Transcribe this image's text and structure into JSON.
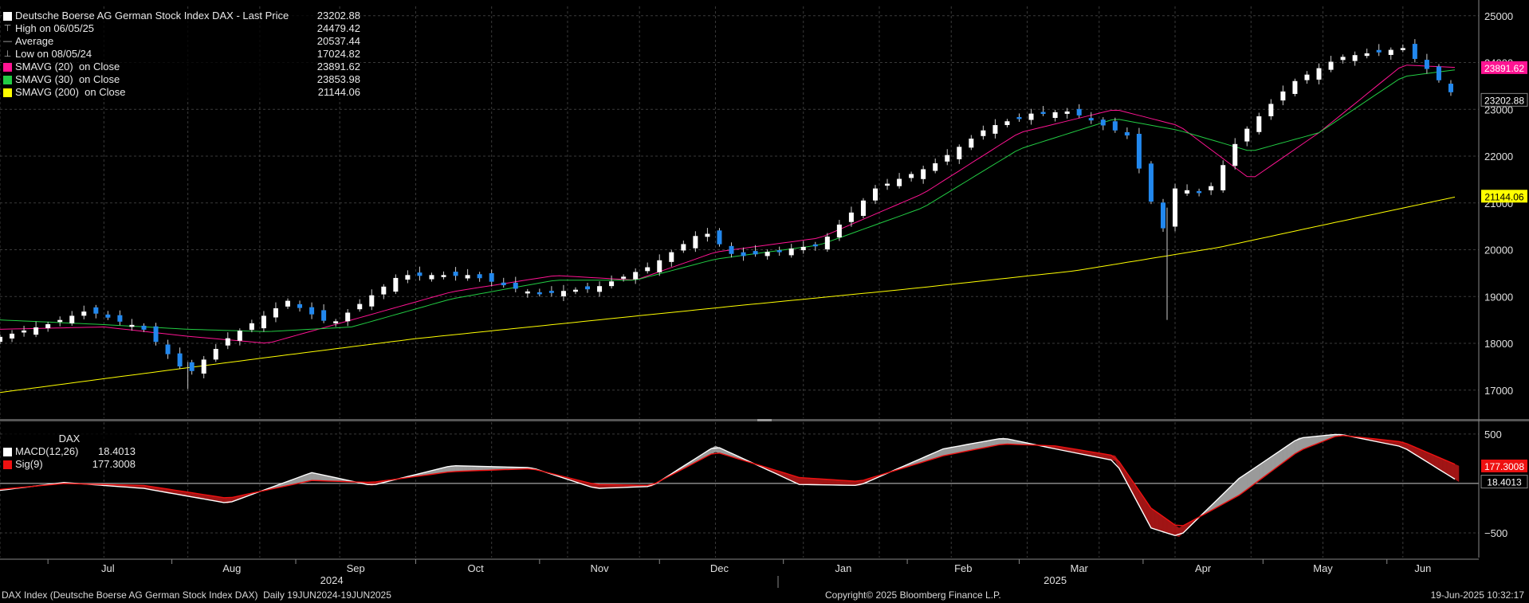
{
  "legend": {
    "main": [
      {
        "marker": "square",
        "color": "#ffffff",
        "label": "Deutsche Boerse AG German Stock Index DAX - Last Price",
        "value": "23202.88"
      },
      {
        "marker": "high",
        "color": "#bbbbbb",
        "label": "High on 06/05/25",
        "value": "24479.42"
      },
      {
        "marker": "avg",
        "color": "#bbbbbb",
        "label": "Average",
        "value": "20537.44"
      },
      {
        "marker": "low",
        "color": "#bbbbbb",
        "label": "Low on 08/05/24",
        "value": "17024.82"
      },
      {
        "marker": "square",
        "color": "#ff1493",
        "label": "SMAVG (20)  on Close",
        "value": "23891.62"
      },
      {
        "marker": "square",
        "color": "#22cc44",
        "label": "SMAVG (30)  on Close",
        "value": "23853.98"
      },
      {
        "marker": "square",
        "color": "#ffff00",
        "label": "SMAVG (200)  on Close",
        "value": "21144.06"
      }
    ],
    "macd_title": "DAX",
    "macd": [
      {
        "marker": "square",
        "color": "#ffffff",
        "label": "MACD(12,26)",
        "value": "18.4013"
      },
      {
        "marker": "square",
        "color": "#ee1111",
        "label": "Sig(9)",
        "value": "177.3008"
      }
    ]
  },
  "price_tags": [
    {
      "value": "23891.62",
      "color": "#ff1493",
      "text_color": "#ffffff"
    },
    {
      "value": "23202.88",
      "color": "#000000",
      "text_color": "#ffffff"
    },
    {
      "value": "21144.06",
      "color": "#ffff00",
      "text_color": "#000000"
    }
  ],
  "macd_tags": [
    {
      "value": "177.3008",
      "color": "#ee1111",
      "text_color": "#ffffff"
    },
    {
      "value": "18.4013",
      "color": "#000000",
      "text_color": "#ffffff"
    }
  ],
  "footer": {
    "left": "DAX Index (Deutsche Boerse AG German Stock Index DAX)  Daily 19JUN2024-19JUN2025",
    "center": "Copyright© 2025 Bloomberg Finance L.P.",
    "right": "19-Jun-2025 10:32:17"
  },
  "chart_data": {
    "type": "line",
    "title": "Deutsche Boerse AG German Stock Index DAX - Last Price",
    "x_axis": {
      "months": [
        "Jul",
        "Aug",
        "Sep",
        "Oct",
        "Nov",
        "Dec",
        "Jan",
        "Feb",
        "Mar",
        "Apr",
        "May",
        "Jun"
      ],
      "years": [
        "2024",
        "2025"
      ]
    },
    "price_axis": {
      "ylim": [
        16400,
        25200
      ],
      "ticks": [
        17000,
        18000,
        19000,
        20000,
        21000,
        22000,
        23000,
        24000,
        25000
      ]
    },
    "macd_axis": {
      "ylim": [
        -750,
        620
      ],
      "ticks": [
        -500,
        500
      ]
    },
    "grid": true,
    "series": [
      {
        "name": "Last Price",
        "style": "candlestick",
        "up_color": "#ffffff",
        "down_color": "#2288ee",
        "x": [
          "2024-06-19",
          "2024-07-01",
          "2024-07-11",
          "2024-07-25",
          "2024-08-05",
          "2024-08-15",
          "2024-08-30",
          "2024-09-10",
          "2024-09-27",
          "2024-10-15",
          "2024-10-31",
          "2024-11-15",
          "2024-11-29",
          "2024-12-12",
          "2024-12-20",
          "2025-01-10",
          "2025-01-24",
          "2025-02-07",
          "2025-02-21",
          "2025-03-04",
          "2025-03-14",
          "2025-03-28",
          "2025-04-04",
          "2025-04-07",
          "2025-04-09",
          "2025-04-17",
          "2025-04-25",
          "2025-05-08",
          "2025-05-20",
          "2025-06-05",
          "2025-06-12",
          "2025-06-19"
        ],
        "values": [
          18130,
          18400,
          18700,
          18300,
          17340,
          18100,
          18900,
          18400,
          19450,
          19450,
          19050,
          19180,
          19650,
          20400,
          19850,
          20100,
          21300,
          21780,
          22600,
          22900,
          22950,
          22450,
          20800,
          20300,
          21300,
          21200,
          22400,
          23550,
          24100,
          24300,
          23800,
          23202.88
        ]
      },
      {
        "name": "SMAVG (20)  on Close",
        "color": "#ff1493",
        "x": [
          "2024-06-19",
          "2024-07-15",
          "2024-08-05",
          "2024-08-25",
          "2024-09-15",
          "2024-10-10",
          "2024-11-05",
          "2024-11-25",
          "2024-12-15",
          "2025-01-10",
          "2025-02-05",
          "2025-03-01",
          "2025-03-25",
          "2025-04-10",
          "2025-04-28",
          "2025-05-15",
          "2025-06-05",
          "2025-06-19"
        ],
        "values": [
          18300,
          18350,
          18150,
          18000,
          18500,
          19100,
          19450,
          19350,
          19950,
          20250,
          21200,
          22500,
          23000,
          22650,
          21500,
          22500,
          23950,
          23891.62
        ]
      },
      {
        "name": "SMAVG (30)  on Close",
        "color": "#22cc44",
        "x": [
          "2024-06-19",
          "2024-07-15",
          "2024-08-05",
          "2024-08-25",
          "2024-09-15",
          "2024-10-10",
          "2024-11-05",
          "2024-11-25",
          "2024-12-15",
          "2025-01-10",
          "2025-02-05",
          "2025-03-01",
          "2025-03-25",
          "2025-04-10",
          "2025-04-28",
          "2025-05-15",
          "2025-06-05",
          "2025-06-19"
        ],
        "values": [
          18500,
          18400,
          18300,
          18250,
          18350,
          18950,
          19350,
          19350,
          19800,
          20100,
          20900,
          22150,
          22800,
          22550,
          22100,
          22500,
          23700,
          23853.98
        ]
      },
      {
        "name": "SMAVG (200)  on Close",
        "color": "#ffff00",
        "x": [
          "2024-06-19",
          "2024-07-20",
          "2024-08-25",
          "2024-10-01",
          "2024-11-10",
          "2024-12-20",
          "2025-01-31",
          "2025-03-15",
          "2025-04-20",
          "2025-05-20",
          "2025-06-19"
        ],
        "values": [
          16950,
          17300,
          17700,
          18100,
          18450,
          18800,
          19150,
          19550,
          20050,
          20600,
          21144.06
        ]
      },
      {
        "name": "MACD(12,26)",
        "color": "#ffffff",
        "panel": "macd",
        "x": [
          "2024-06-19",
          "2024-07-05",
          "2024-07-25",
          "2024-08-15",
          "2024-09-05",
          "2024-09-20",
          "2024-10-10",
          "2024-10-30",
          "2024-11-15",
          "2024-11-29",
          "2024-12-15",
          "2025-01-05",
          "2025-01-20",
          "2025-02-10",
          "2025-02-25",
          "2025-03-10",
          "2025-03-25",
          "2025-04-03",
          "2025-04-10",
          "2025-04-25",
          "2025-05-10",
          "2025-05-20",
          "2025-06-05",
          "2025-06-19"
        ],
        "values": [
          -70,
          10,
          -50,
          -200,
          110,
          -20,
          180,
          160,
          -50,
          -30,
          380,
          -10,
          -20,
          350,
          460,
          350,
          230,
          -450,
          -540,
          50,
          460,
          500,
          370,
          18.4013
        ]
      },
      {
        "name": "Sig(9)",
        "color": "#ee1111",
        "panel": "macd",
        "x": [
          "2024-06-19",
          "2024-07-05",
          "2024-07-25",
          "2024-08-15",
          "2024-09-05",
          "2024-09-20",
          "2024-10-10",
          "2024-10-30",
          "2024-11-15",
          "2024-11-29",
          "2024-12-15",
          "2025-01-05",
          "2025-01-20",
          "2025-02-10",
          "2025-02-25",
          "2025-03-10",
          "2025-03-25",
          "2025-04-03",
          "2025-04-10",
          "2025-04-25",
          "2025-05-10",
          "2025-05-20",
          "2025-06-05",
          "2025-06-19"
        ],
        "values": [
          -60,
          0,
          -20,
          -150,
          30,
          10,
          120,
          150,
          -10,
          -20,
          320,
          60,
          20,
          280,
          400,
          380,
          280,
          -250,
          -450,
          -120,
          330,
          490,
          420,
          177.3008
        ]
      }
    ]
  }
}
